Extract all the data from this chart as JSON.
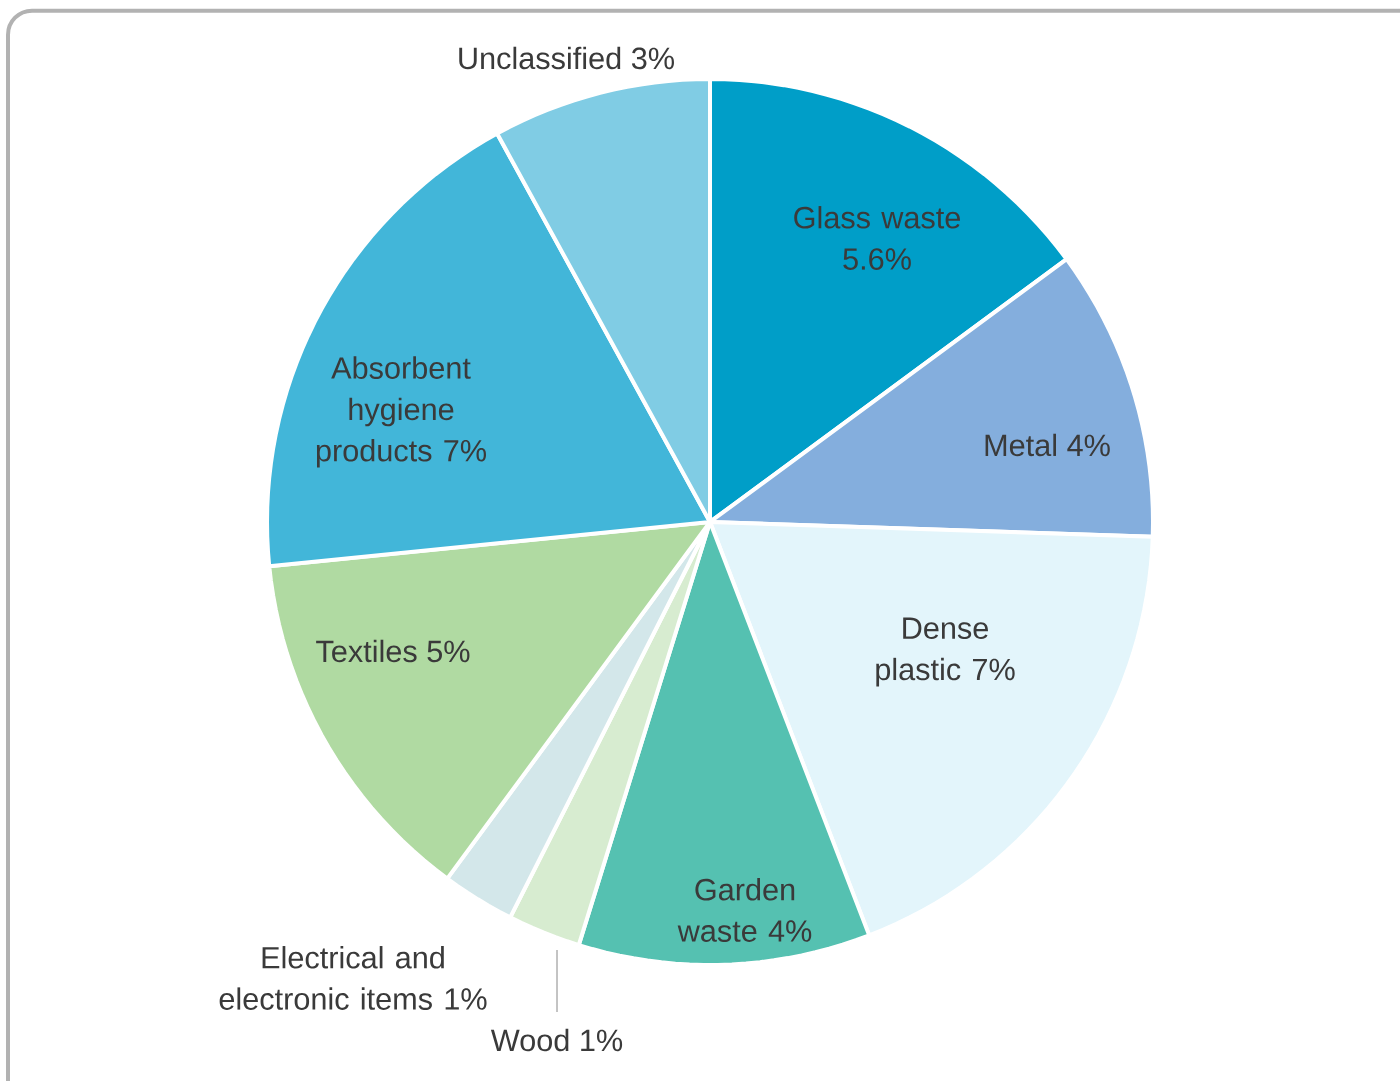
{
  "chart_data": {
    "type": "pie",
    "categories": [
      "Glass waste",
      "Metal",
      "Dense plastic",
      "Garden waste",
      "Wood",
      "Electrical and electronic items",
      "Textiles",
      "Absorbent hygiene products",
      "Unclassified"
    ],
    "values": [
      5.6,
      4,
      7,
      4,
      1,
      1,
      5,
      7,
      3
    ],
    "value_labels": [
      "5.6%",
      "4%",
      "7%",
      "4%",
      "1%",
      "1%",
      "5%",
      "7%",
      "3%"
    ],
    "colors": [
      "#009ec8",
      "#84aedd",
      "#e3f5fb",
      "#55c1b1",
      "#d7ecd0",
      "#d3e7ea",
      "#b0daa2",
      "#42b6d9",
      "#80cce4"
    ]
  }
}
